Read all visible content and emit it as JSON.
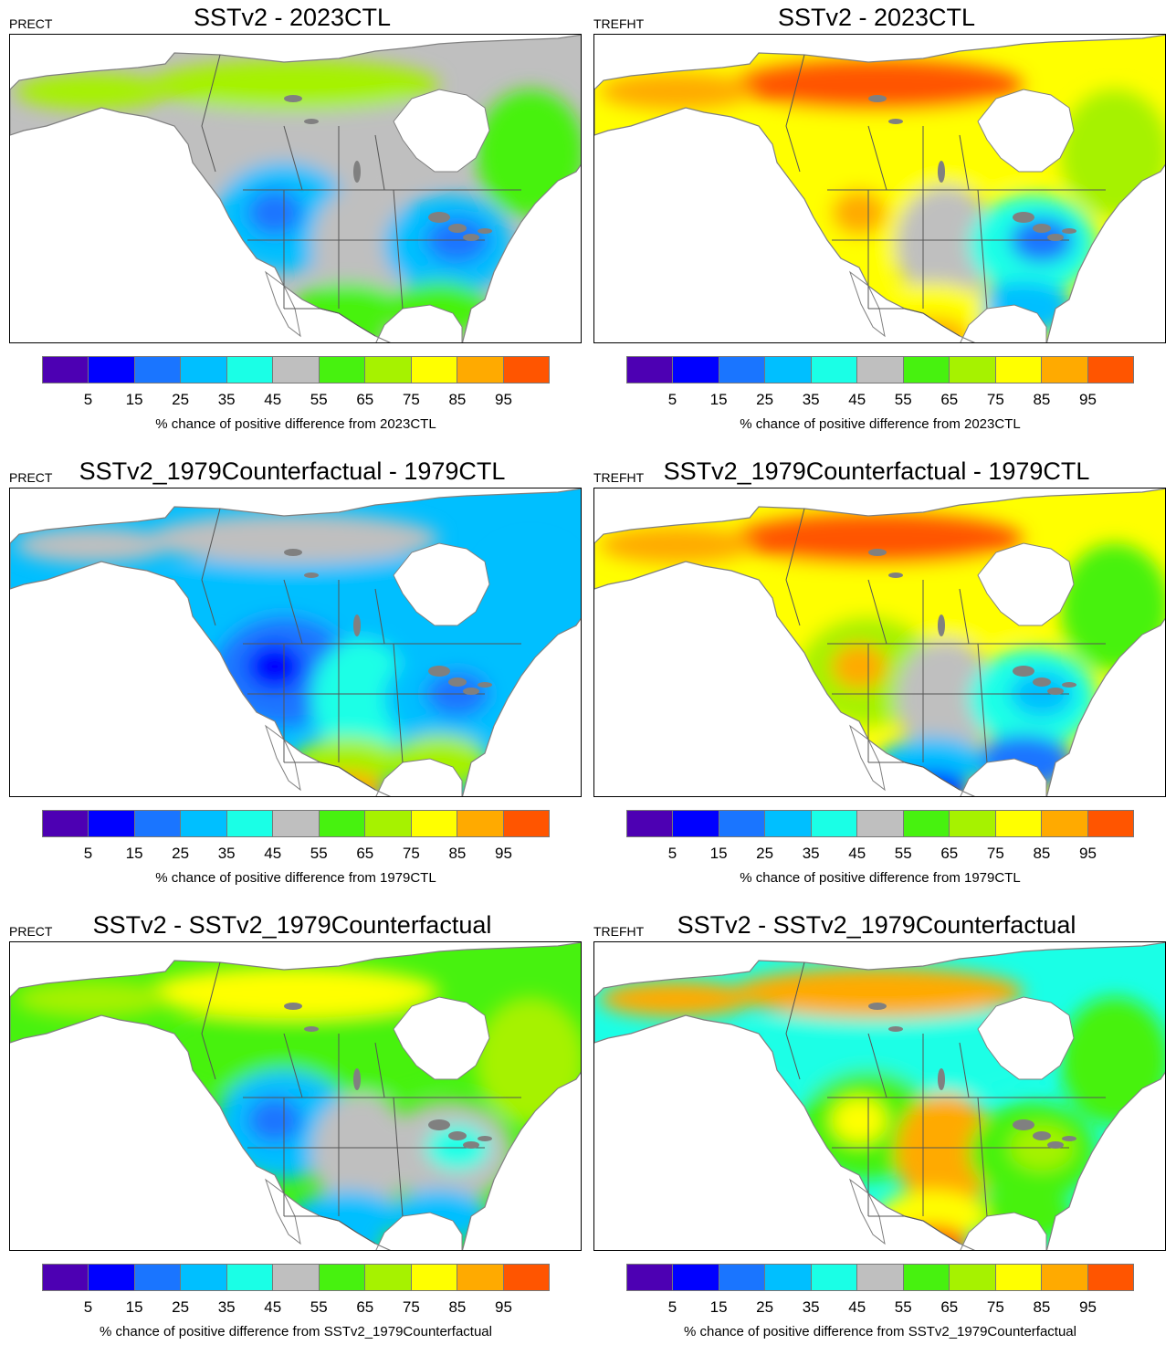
{
  "colorbar": {
    "colors": [
      "#4d00b3",
      "#0000ff",
      "#1a75ff",
      "#00bfff",
      "#1affe6",
      "#bfbfbf",
      "#47f20f",
      "#a6f200",
      "#ffff00",
      "#ffaa00",
      "#ff5500"
    ],
    "ticks": [
      "5",
      "15",
      "25",
      "35",
      "45",
      "55",
      "65",
      "75",
      "85",
      "95"
    ]
  },
  "map_colors": {
    "land_border": "#808080",
    "ocean": "#ffffff"
  },
  "panels": [
    {
      "variable": "PRECT",
      "title": "SSTv2 - 2023CTL",
      "caption": "% chance of positive difference from 2023CTL",
      "fields": {
        "north": "#a6f200",
        "canada_mid": "#bfbfbf",
        "west": "#00bfff",
        "west_core": "#1a75ff",
        "plains": "#bfbfbf",
        "east": "#00bfff",
        "east_core": "#1a75ff",
        "southeast": "#47f20f",
        "south": "#47f20f",
        "mexico": "#47f20f",
        "alaska": "#a6f200",
        "quebec": "#47f20f"
      }
    },
    {
      "variable": "TREFHT",
      "title": "SSTv2 - 2023CTL",
      "caption": "% chance of positive difference from 2023CTL",
      "fields": {
        "north": "#ff5500",
        "canada_mid": "#ffff00",
        "west": "#ffff00",
        "west_core": "#ffaa00",
        "plains": "#bfbfbf",
        "east": "#1affe6",
        "east_core": "#1a75ff",
        "southeast": "#00bfff",
        "south": "#ffff00",
        "mexico": "#ffaa00",
        "alaska": "#ffaa00",
        "quebec": "#a6f200"
      }
    },
    {
      "variable": "PRECT",
      "title": "SSTv2_1979Counterfactual - 1979CTL",
      "caption": "% chance of positive difference from 1979CTL",
      "fields": {
        "north": "#bfbfbf",
        "canada_mid": "#00bfff",
        "west": "#1a75ff",
        "west_core": "#0000ff",
        "plains": "#1affe6",
        "east": "#00bfff",
        "east_core": "#1a75ff",
        "southeast": "#a6f200",
        "south": "#a6f200",
        "mexico": "#ffaa00",
        "alaska": "#bfbfbf",
        "quebec": "#00bfff"
      }
    },
    {
      "variable": "TREFHT",
      "title": "SSTv2_1979Counterfactual - 1979CTL",
      "caption": "% chance of positive difference from 1979CTL",
      "fields": {
        "north": "#ff5500",
        "canada_mid": "#ffff00",
        "west": "#a6f200",
        "west_core": "#ffaa00",
        "plains": "#bfbfbf",
        "east": "#1affe6",
        "east_core": "#00bfff",
        "southeast": "#1a75ff",
        "south": "#00bfff",
        "mexico": "#0000ff",
        "alaska": "#ffaa00",
        "quebec": "#47f20f"
      }
    },
    {
      "variable": "PRECT",
      "title": "SSTv2 - SSTv2_1979Counterfactual",
      "caption": "% chance of positive difference from SSTv2_1979Counterfactual",
      "fields": {
        "north": "#ffff00",
        "canada_mid": "#47f20f",
        "west": "#00bfff",
        "west_core": "#1a75ff",
        "plains": "#bfbfbf",
        "east": "#bfbfbf",
        "east_core": "#1affe6",
        "southeast": "#00bfff",
        "south": "#00bfff",
        "mexico": "#00bfff",
        "alaska": "#a6f200",
        "quebec": "#a6f200"
      }
    },
    {
      "variable": "TREFHT",
      "title": "SSTv2 - SSTv2_1979Counterfactual",
      "caption": "% chance of positive difference from SSTv2_1979Counterfactual",
      "fields": {
        "north": "#ffaa00",
        "canada_mid": "#1affe6",
        "west": "#47f20f",
        "west_core": "#ffff00",
        "plains": "#ffaa00",
        "east": "#47f20f",
        "east_core": "#a6f200",
        "southeast": "#47f20f",
        "south": "#ffff00",
        "mexico": "#ff5500",
        "alaska": "#ffaa00",
        "quebec": "#47f20f"
      }
    }
  ]
}
